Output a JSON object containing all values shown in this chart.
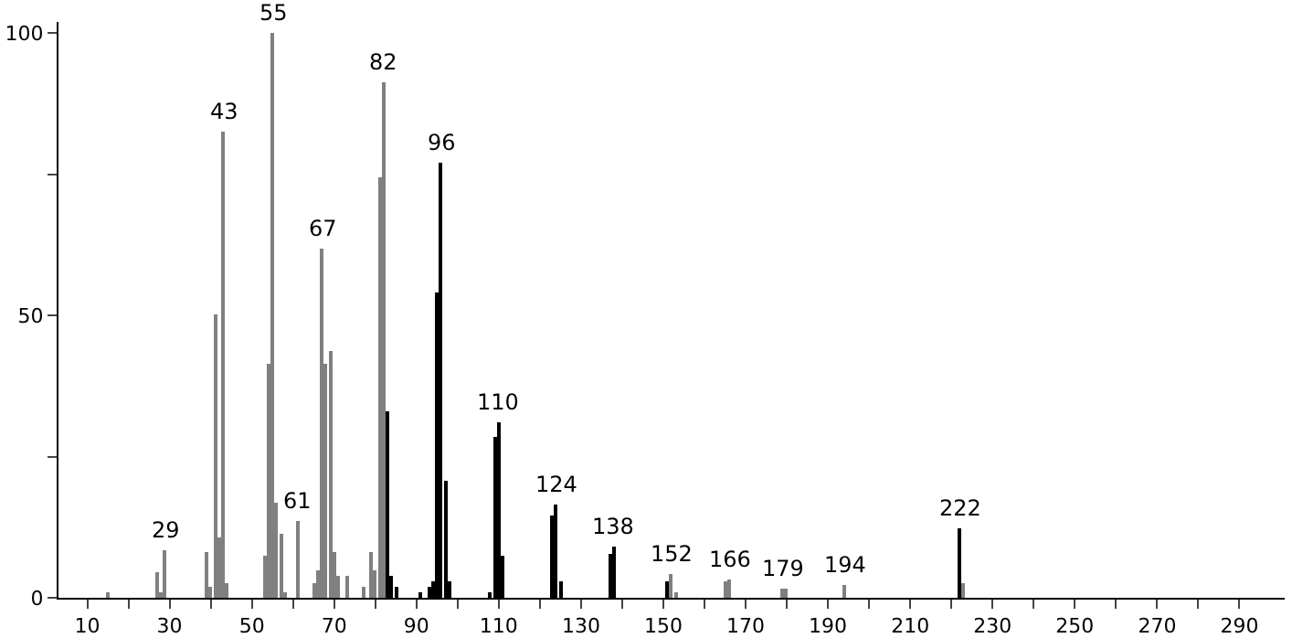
{
  "chart_data": {
    "type": "bar",
    "x": [
      15,
      27,
      28,
      29,
      39,
      40,
      41,
      42,
      43,
      44,
      53,
      54,
      55,
      56,
      57,
      58,
      61,
      65,
      66,
      67,
      68,
      69,
      70,
      71,
      73,
      77,
      79,
      80,
      81,
      82,
      83,
      84,
      85,
      91,
      93,
      94,
      95,
      96,
      97,
      98,
      108,
      109,
      110,
      111,
      123,
      124,
      125,
      137,
      138,
      151,
      152,
      153,
      165,
      166,
      179,
      180,
      194,
      222,
      223
    ],
    "values": [
      1,
      4.5,
      1,
      8.4,
      8.2,
      2,
      50.1,
      10.7,
      82.7,
      2.5,
      7.3,
      41.6,
      100,
      16.9,
      11.2,
      1,
      13.6,
      2.5,
      5,
      62,
      41.6,
      43.8,
      8,
      4,
      4,
      2,
      8,
      5,
      74.4,
      91.2,
      33,
      4,
      2,
      1,
      2,
      3,
      54,
      77.2,
      20.8,
      3,
      1,
      28.6,
      31.1,
      7.4,
      14.7,
      16.4,
      3,
      7.9,
      9.1,
      2.9,
      4.2,
      1,
      2.9,
      3.2,
      1.5,
      1.5,
      2.2,
      12.4,
      2.5
    ],
    "colors": [
      "#808080",
      "#808080",
      "#808080",
      "#808080",
      "#808080",
      "#808080",
      "#808080",
      "#808080",
      "#808080",
      "#808080",
      "#808080",
      "#808080",
      "#808080",
      "#808080",
      "#808080",
      "#808080",
      "#808080",
      "#808080",
      "#808080",
      "#808080",
      "#808080",
      "#808080",
      "#808080",
      "#808080",
      "#808080",
      "#808080",
      "#808080",
      "#808080",
      "#808080",
      "#808080",
      "#000000",
      "#000000",
      "#000000",
      "#000000",
      "#000000",
      "#000000",
      "#000000",
      "#000000",
      "#000000",
      "#000000",
      "#000000",
      "#000000",
      "#000000",
      "#000000",
      "#000000",
      "#000000",
      "#000000",
      "#000000",
      "#000000",
      "#000000",
      "#808080",
      "#808080",
      "#808080",
      "#808080",
      "#808080",
      "#808080",
      "#808080",
      "#000000",
      "#808080"
    ],
    "annotations": [
      {
        "text": "29",
        "x": 29,
        "y": 8.4
      },
      {
        "text": "43",
        "x": 43,
        "y": 82.7
      },
      {
        "text": "55",
        "x": 55,
        "y": 100
      },
      {
        "text": "61",
        "x": 61,
        "y": 13.6
      },
      {
        "text": "67",
        "x": 67,
        "y": 62
      },
      {
        "text": "82",
        "x": 82,
        "y": 91.2
      },
      {
        "text": "96",
        "x": 96,
        "y": 77.2
      },
      {
        "text": "110",
        "x": 110,
        "y": 31.1
      },
      {
        "text": "124",
        "x": 124,
        "y": 16.4
      },
      {
        "text": "138",
        "x": 138,
        "y": 9.1
      },
      {
        "text": "152",
        "x": 152,
        "y": 4.2
      },
      {
        "text": "166",
        "x": 166,
        "y": 3.2
      },
      {
        "text": "179",
        "x": 179,
        "y": 1.5
      },
      {
        "text": "194",
        "x": 194,
        "y": 2.2
      },
      {
        "text": "222",
        "x": 222,
        "y": 12.4
      }
    ],
    "xlim": [
      3,
      301
    ],
    "xticks": [
      10,
      {
        "value": 20,
        "label": null
      },
      30,
      {
        "value": 40,
        "label": null
      },
      50,
      {
        "value": 60,
        "label": null
      },
      70,
      {
        "value": 80,
        "label": null
      },
      90,
      {
        "value": 100,
        "label": null
      },
      110,
      {
        "value": 120,
        "label": null
      },
      130,
      {
        "value": 140,
        "label": null
      },
      150,
      {
        "value": 160,
        "label": null
      },
      170,
      {
        "value": 180,
        "label": null
      },
      190,
      {
        "value": 200,
        "label": null
      },
      210,
      {
        "value": 220,
        "label": null
      },
      230,
      {
        "value": 240,
        "label": null
      },
      250,
      {
        "value": 260,
        "label": null
      },
      270,
      {
        "value": 280,
        "label": null
      },
      290
    ],
    "ylim": [
      0,
      102
    ],
    "yticks": [
      0,
      {
        "value": 25,
        "label": null
      },
      50,
      {
        "value": 75,
        "label": null
      },
      100
    ],
    "grid": false
  }
}
